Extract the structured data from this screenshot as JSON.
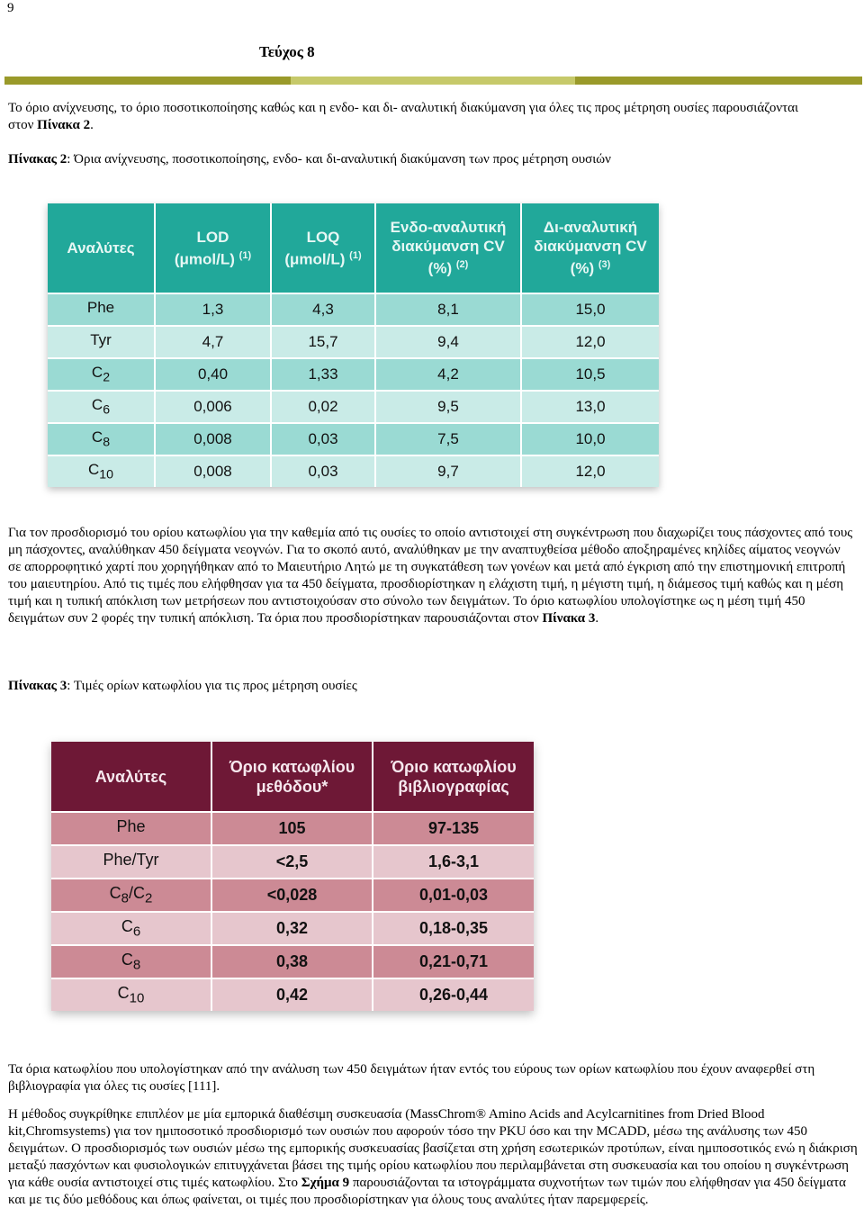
{
  "page_number": "9",
  "header_title": "Τεύχος 8",
  "colors": {
    "rule_dark": "#9a9a2a",
    "rule_light": "#c6c96a",
    "teal_header": "#21a89a",
    "teal_odd": "#9adad3",
    "teal_even": "#c9ebe7",
    "wine_header": "#6e1836",
    "wine_odd": "#cc8a95",
    "wine_even": "#e6c6cd"
  },
  "intro": {
    "text": "Το όριο ανίχνευσης, το όριο ποσοτικοποίησης καθώς και η ενδο- και δι- αναλυτική διακύμανση για όλες τις προς μέτρηση ουσίες παρουσιάζονται στον ",
    "bold": "Πίνακα 2",
    "end": "."
  },
  "table2_caption": {
    "label": "Πίνακας 2",
    "text": ": Όρια ανίχνευσης, ποσοτικοποίησης, ενδο- και δι-αναλυτική διακύμανση των προς μέτρηση ουσιών"
  },
  "table1": {
    "headers": {
      "analytes": "Αναλύτες",
      "lod_line1": "LOD",
      "lod_line2": "(μmol/L)",
      "lod_note": "(1)",
      "loq_line1": "LOQ",
      "loq_line2": "(μmol/L)",
      "loq_note": "(1)",
      "intra_line1": "Ενδο-αναλυτική",
      "intra_line2": "διακύμανση CV",
      "intra_line3": "(%)",
      "intra_note": "(2)",
      "inter_line1": "Δι-αναλυτική",
      "inter_line2": "διακύμανση CV",
      "inter_line3": "(%)",
      "inter_note": "(3)"
    },
    "rows": [
      {
        "analyte": "Phe",
        "sub": "",
        "lod": "1,3",
        "loq": "4,3",
        "intra": "8,1",
        "inter": "15,0"
      },
      {
        "analyte": "Tyr",
        "sub": "",
        "lod": "4,7",
        "loq": "15,7",
        "intra": "9,4",
        "inter": "12,0"
      },
      {
        "analyte": "C",
        "sub": "2",
        "lod": "0,40",
        "loq": "1,33",
        "intra": "4,2",
        "inter": "10,5"
      },
      {
        "analyte": "C",
        "sub": "6",
        "lod": "0,006",
        "loq": "0,02",
        "intra": "9,5",
        "inter": "13,0"
      },
      {
        "analyte": "C",
        "sub": "8",
        "lod": "0,008",
        "loq": "0,03",
        "intra": "7,5",
        "inter": "10,0"
      },
      {
        "analyte": "C",
        "sub": "10",
        "lod": "0,008",
        "loq": "0,03",
        "intra": "9,7",
        "inter": "12,0"
      }
    ]
  },
  "body_paragraph": {
    "text": "Για τον προσδιορισμό του ορίου κατωφλίου για την καθεμία από τις ουσίες το οποίο αντιστοιχεί στη συγκέντρωση που διαχωρίζει τους πάσχοντες από τους μη πάσχοντες, αναλύθηκαν 450 δείγματα νεογνών. Για το σκοπό αυτό, αναλύθηκαν με την αναπτυχθείσα μέθοδο αποξηραμένες κηλίδες αίματος νεογνών σε απορροφητικό χαρτί που χορηγήθηκαν από το Μαιευτήριο Λητώ με τη συγκατάθεση των γονέων και μετά από έγκριση από την επιστημονική επιτροπή του μαιευτηρίου. Από τις τιμές που ελήφθησαν για τα 450 δείγματα, προσδιορίστηκαν η ελάχιστη τιμή, η μέγιστη τιμή, η διάμεσος τιμή καθώς και η μέση τιμή και η τυπική απόκλιση των μετρήσεων που αντιστοιχούσαν στο σύνολο των δειγμάτων. Το όριο κατωφλίου υπολογίστηκε ως η μέση τιμή 450 δειγμάτων συν 2 φορές την τυπική απόκλιση. Τα όρια που προσδιορίστηκαν παρουσιάζονται στον  ",
    "bold": "Πίνακα 3",
    "end": "."
  },
  "table3_caption": {
    "label": "Πίνακας 3",
    "text": ": Τιμές ορίων κατωφλίου για τις προς μέτρηση ουσίες"
  },
  "table2": {
    "headers": {
      "analytes": "Αναλύτες",
      "method_line1": "Όριο κατωφλίου",
      "method_line2": "μεθόδου*",
      "lit_line1": "Όριο κατωφλίου",
      "lit_line2": "βιβλιογραφίας"
    },
    "rows": [
      {
        "a1": "Phe",
        "s1": "",
        "sep": "",
        "a2": "",
        "s2": "",
        "method": "105",
        "lit": "97-135"
      },
      {
        "a1": "Phe/Tyr",
        "s1": "",
        "sep": "",
        "a2": "",
        "s2": "",
        "method": "<2,5",
        "lit": "1,6-3,1"
      },
      {
        "a1": "C",
        "s1": "8",
        "sep": "/",
        "a2": "C",
        "s2": "2",
        "method": "<0,028",
        "lit": "0,01-0,03"
      },
      {
        "a1": "C",
        "s1": "6",
        "sep": "",
        "a2": "",
        "s2": "",
        "method": "0,32",
        "lit": "0,18-0,35"
      },
      {
        "a1": "C",
        "s1": "8",
        "sep": "",
        "a2": "",
        "s2": "",
        "method": "0,38",
        "lit": "0,21-0,71"
      },
      {
        "a1": "C",
        "s1": "10",
        "sep": "",
        "a2": "",
        "s2": "",
        "method": "0,42",
        "lit": "0,26-0,44"
      }
    ]
  },
  "para2": "Τα όρια κατωφλίου που υπολογίστηκαν από την ανάλυση των 450 δειγμάτων ήταν εντός του εύρους των ορίων κατωφλίου που έχουν αναφερθεί στη βιβλιογραφία για όλες τις ουσίες [111].",
  "para3": {
    "text": "Η μέθοδος συγκρίθηκε επιπλέον με μία εμπορικά διαθέσιμη συσκευασία (MassChrom® Amino Acids and Acylcarnitines from Dried Blood kit,Chromsystems) για τον ημιποσοτικό προσδιορισμό των ουσιών που αφορούν τόσο την PKU όσο και την MCADD, μέσω της ανάλυσης των 450 δειγμάτων. Ο προσδιορισμός των ουσιών μέσω της εμπορικής συσκευασίας βασίζεται στη χρήση εσωτερικών προτύπων, είναι ημιποσοτικός ενώ η διάκριση μεταξύ πασχόντων και φυσιολογικών επιτυγχάνεται βάσει της τιμής ορίου κατωφλίου που περιλαμβάνεται στη συσκευασία και του οποίου η συγκέντρωση για κάθε ουσία αντιστοιχεί στις τιμές κατωφλίου. Στο ",
    "bold": "Σχήμα 9",
    "end": " παρουσιάζονται τα ιστογράμματα συχνοτήτων των τιμών που ελήφθησαν για 450 δείγματα και με τις δύο μεθόδους και όπως φαίνεται, οι τιμές που προσδιορίστηκαν για όλους τους αναλύτες ήταν παρεμφερείς."
  }
}
